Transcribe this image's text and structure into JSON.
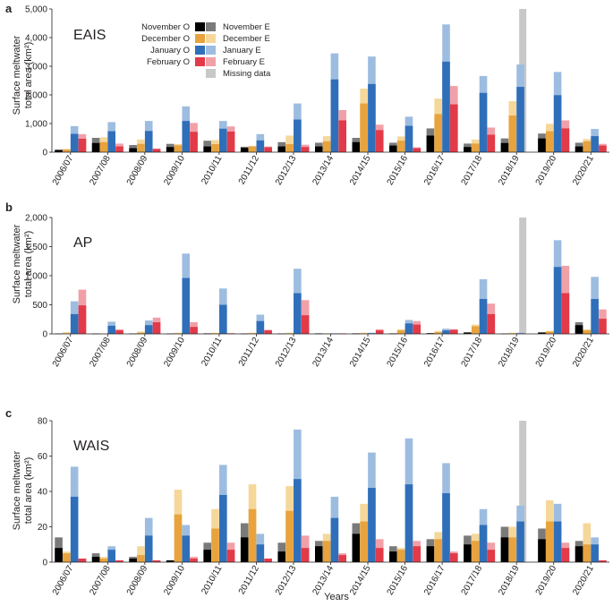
{
  "colors": {
    "obs_dark": "#000000",
    "exp_dark": "#7a7a7a",
    "obs_orange": "#e8a33d",
    "exp_orange": "#f5d79a",
    "obs_blue": "#2f6fba",
    "exp_blue": "#9dbde0",
    "obs_red": "#e23a48",
    "exp_red": "#f1a0a8",
    "missing": "#c8c8c8",
    "axis": "#231f20"
  },
  "chart_data": {
    "type": "bar",
    "categories": [
      "2006/07",
      "2007/08",
      "2008/09",
      "2009/10",
      "2010/11",
      "2011/12",
      "2012/13",
      "2013/14",
      "2014/15",
      "2015/16",
      "2016/17",
      "2017/18",
      "2018/19",
      "2019/20",
      "2020/21"
    ],
    "missing_index": 12,
    "months": [
      "November",
      "December",
      "January",
      "February"
    ],
    "xlabel": "Years",
    "legend": {
      "entries": [
        {
          "obs": "November O",
          "exp": "November E"
        },
        {
          "obs": "December O",
          "exp": "December E"
        },
        {
          "obs": "January O",
          "exp": "January E"
        },
        {
          "obs": "February O",
          "exp": "February E"
        }
      ],
      "missing_label": "Missing data",
      "placement": "top-center"
    },
    "panels": [
      {
        "label": "a",
        "region": "EAIS",
        "ylabel_line1": "Surface meltwater",
        "ylabel_line2": "total area (km²)",
        "ylim": [
          0,
          5000
        ],
        "ytick_values": [
          0,
          1000,
          2000,
          3000,
          4000,
          5000
        ],
        "ytick_labels": [
          "0",
          "1,000",
          "2,000",
          "3,000",
          "4,000",
          "5,000"
        ],
        "observed": {
          "November": [
            80,
            320,
            140,
            180,
            200,
            150,
            200,
            200,
            350,
            230,
            580,
            180,
            320,
            480,
            200
          ],
          "December": [
            100,
            350,
            290,
            240,
            280,
            200,
            280,
            380,
            1700,
            400,
            1330,
            300,
            1280,
            730,
            380
          ],
          "January": [
            640,
            730,
            740,
            1090,
            820,
            410,
            1140,
            2540,
            2380,
            920,
            3160,
            2070,
            2280,
            1990,
            560
          ],
          "February": [
            470,
            200,
            110,
            710,
            720,
            170,
            180,
            1110,
            770,
            140,
            1670,
            610,
            null,
            830,
            230
          ]
        },
        "expected": {
          "November": [
            80,
            500,
            250,
            290,
            400,
            190,
            350,
            330,
            500,
            330,
            830,
            300,
            480,
            650,
            330
          ],
          "December": [
            100,
            520,
            440,
            280,
            420,
            220,
            580,
            560,
            2220,
            550,
            1870,
            440,
            1780,
            990,
            460
          ],
          "January": [
            910,
            1050,
            1090,
            1600,
            1090,
            630,
            1700,
            3450,
            3340,
            1240,
            4460,
            2660,
            3060,
            2800,
            810
          ],
          "February": [
            630,
            300,
            130,
            1020,
            900,
            200,
            260,
            1470,
            960,
            170,
            2310,
            860,
            null,
            1110,
            290
          ]
        }
      },
      {
        "label": "b",
        "region": "AP",
        "ylabel_line1": "Surface meltwater",
        "ylabel_line2": "total area (km²)",
        "ylim": [
          0,
          2000
        ],
        "ytick_values": [
          0,
          500,
          1000,
          1500,
          2000
        ],
        "ytick_labels": [
          "0",
          "500",
          "1,000",
          "1,500",
          "2,000"
        ],
        "observed": {
          "November": [
            5,
            5,
            5,
            5,
            5,
            5,
            5,
            5,
            5,
            5,
            10,
            20,
            5,
            20,
            150
          ],
          "December": [
            10,
            5,
            20,
            10,
            10,
            10,
            10,
            5,
            10,
            60,
            30,
            130,
            10,
            40,
            60
          ],
          "January": [
            340,
            140,
            150,
            960,
            500,
            220,
            700,
            5,
            10,
            180,
            60,
            600,
            10,
            1150,
            600
          ],
          "February": [
            490,
            60,
            200,
            120,
            10,
            60,
            320,
            5,
            60,
            160,
            70,
            340,
            null,
            700,
            260
          ]
        },
        "expected": {
          "November": [
            5,
            5,
            5,
            5,
            10,
            5,
            5,
            10,
            10,
            10,
            15,
            30,
            5,
            30,
            200
          ],
          "December": [
            30,
            5,
            40,
            20,
            20,
            20,
            20,
            10,
            20,
            80,
            50,
            160,
            20,
            50,
            80
          ],
          "January": [
            560,
            210,
            230,
            1380,
            780,
            330,
            1120,
            10,
            20,
            240,
            90,
            940,
            20,
            1610,
            980
          ],
          "February": [
            760,
            80,
            280,
            200,
            10,
            70,
            580,
            10,
            80,
            220,
            80,
            520,
            null,
            1170,
            420
          ]
        }
      },
      {
        "label": "c",
        "region": "WAIS",
        "ylabel_line1": "Surface meltwater",
        "ylabel_line2": "total area (km²)",
        "ylim": [
          0,
          80
        ],
        "ytick_values": [
          0,
          20,
          40,
          60,
          80
        ],
        "ytick_labels": [
          "0",
          "20",
          "40",
          "60",
          "80"
        ],
        "observed": {
          "November": [
            8,
            3,
            2,
            1,
            7,
            14,
            6,
            9,
            16,
            6,
            9,
            10,
            14,
            13,
            9
          ],
          "December": [
            5,
            2,
            4,
            27,
            19,
            30,
            29,
            12,
            23,
            7,
            13,
            12,
            14,
            23,
            10
          ],
          "January": [
            37,
            7,
            15,
            15,
            38,
            10,
            47,
            25,
            42,
            44,
            39,
            21,
            23,
            23,
            10
          ],
          "February": [
            2,
            1,
            1,
            2,
            7,
            2,
            8,
            4,
            8,
            9,
            5,
            7,
            null,
            8,
            1
          ]
        },
        "expected": {
          "November": [
            14,
            5,
            3,
            1,
            11,
            22,
            11,
            12,
            22,
            9,
            13,
            15,
            20,
            19,
            12
          ],
          "December": [
            6,
            3,
            9,
            41,
            30,
            44,
            43,
            16,
            33,
            8,
            17,
            16,
            20,
            35,
            22
          ],
          "January": [
            54,
            9,
            25,
            21,
            55,
            16,
            75,
            37,
            62,
            70,
            56,
            30,
            32,
            33,
            14
          ],
          "February": [
            2,
            1,
            1,
            3,
            11,
            2,
            15,
            5,
            13,
            12,
            6,
            11,
            null,
            11,
            1
          ]
        }
      }
    ]
  }
}
